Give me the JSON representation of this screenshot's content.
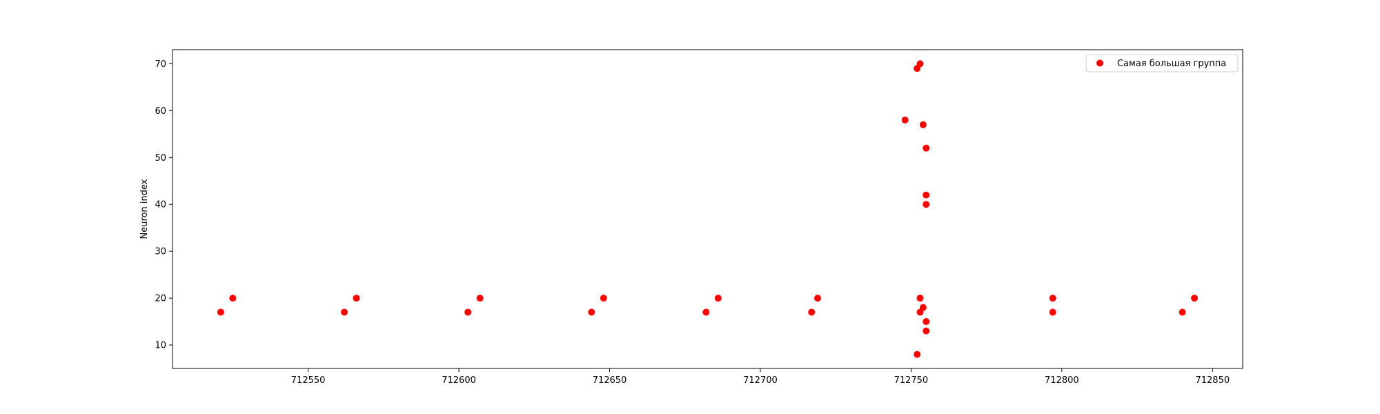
{
  "chart_data": {
    "type": "scatter",
    "title": "",
    "xlabel": "",
    "ylabel": "Neuron index",
    "xlim": [
      712505,
      712860
    ],
    "ylim": [
      5,
      73
    ],
    "xticks": [
      712550,
      712600,
      712650,
      712700,
      712750,
      712800,
      712850
    ],
    "yticks": [
      10,
      20,
      30,
      40,
      50,
      60,
      70
    ],
    "grid": false,
    "legend_position": "top-right",
    "series": [
      {
        "name": "Самая большая группа",
        "color": "#ff0000",
        "points": [
          {
            "x": 712521,
            "y": 17
          },
          {
            "x": 712525,
            "y": 20
          },
          {
            "x": 712562,
            "y": 17
          },
          {
            "x": 712566,
            "y": 20
          },
          {
            "x": 712603,
            "y": 17
          },
          {
            "x": 712607,
            "y": 20
          },
          {
            "x": 712644,
            "y": 17
          },
          {
            "x": 712648,
            "y": 20
          },
          {
            "x": 712682,
            "y": 17
          },
          {
            "x": 712686,
            "y": 20
          },
          {
            "x": 712717,
            "y": 17
          },
          {
            "x": 712719,
            "y": 20
          },
          {
            "x": 712748,
            "y": 58
          },
          {
            "x": 712752,
            "y": 8
          },
          {
            "x": 712752,
            "y": 69
          },
          {
            "x": 712753,
            "y": 70
          },
          {
            "x": 712753,
            "y": 20
          },
          {
            "x": 712753,
            "y": 17
          },
          {
            "x": 712754,
            "y": 57
          },
          {
            "x": 712754,
            "y": 18
          },
          {
            "x": 712755,
            "y": 42
          },
          {
            "x": 712755,
            "y": 52
          },
          {
            "x": 712755,
            "y": 40
          },
          {
            "x": 712755,
            "y": 15
          },
          {
            "x": 712755,
            "y": 13
          },
          {
            "x": 712797,
            "y": 20
          },
          {
            "x": 712797,
            "y": 17
          },
          {
            "x": 712840,
            "y": 17
          },
          {
            "x": 712844,
            "y": 20
          }
        ]
      }
    ]
  }
}
